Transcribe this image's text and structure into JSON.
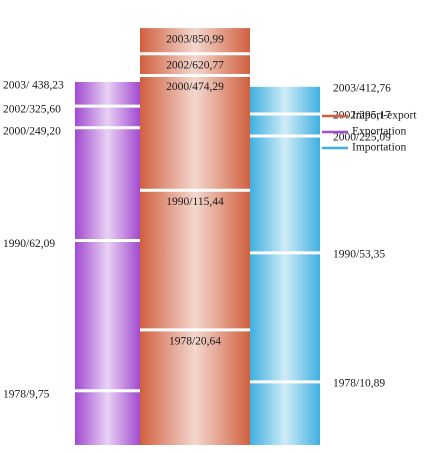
{
  "chart_data": {
    "type": "bar",
    "log_scale": true,
    "ylim": [
      5,
      1000
    ],
    "series": [
      {
        "name": "Import-export",
        "color": "#d0603f",
        "values": [
          20.64,
          115.44,
          474.29,
          620.77,
          850.99
        ],
        "value_labels": [
          "1978/20,64",
          "1990/115,44",
          "2000/474,29",
          "2002/620,77",
          "2003/850,99"
        ]
      },
      {
        "name": "Exportation",
        "color": "#a24ad0",
        "values": [
          9.75,
          62.09,
          249.2,
          325.6,
          438.23
        ],
        "value_labels": [
          "1978/9,75",
          "1990/62,09",
          "2000/249,20",
          "2002/325,60",
          "2003/ 438,23"
        ]
      },
      {
        "name": "Importation",
        "color": "#3fb0e0",
        "values": [
          10.89,
          53.35,
          225.09,
          295.17,
          412.76
        ],
        "value_labels": [
          "1978/10,89",
          "1990/53,35",
          "2000/225,09",
          "2002/295,17",
          "2003/412,76"
        ]
      }
    ]
  }
}
